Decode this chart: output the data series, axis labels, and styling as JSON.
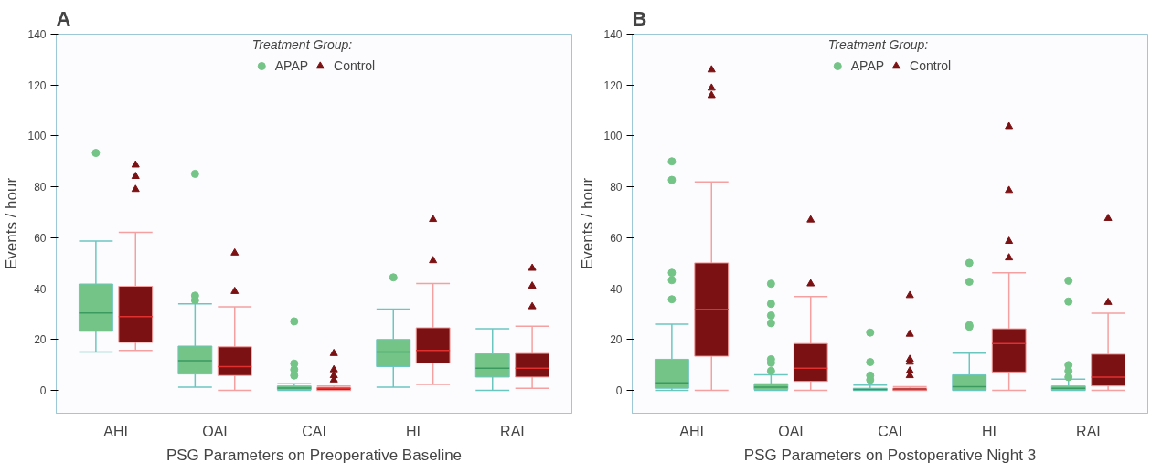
{
  "chart_data": [
    {
      "type": "box",
      "title": "A",
      "xlabel": "PSG Parameters on Preoperative Baseline",
      "ylabel": "Events / hour",
      "legend_title": "Treatment Group:",
      "legend": "top",
      "grid": false,
      "ylim": [
        -9,
        140
      ],
      "yticks": [
        0,
        20,
        40,
        60,
        80,
        100,
        120,
        140
      ],
      "categories": [
        "AHI",
        "OAI",
        "CAI",
        "HI",
        "RAI"
      ],
      "series": [
        {
          "name": "APAP",
          "color": "#74c487",
          "marker": "circle",
          "boxes": [
            {
              "low": 15.1,
              "q1": 23.2,
              "median": 30.4,
              "q3": 41.8,
              "high": 58.7,
              "outliers": [
                93.3
              ]
            },
            {
              "low": 1.2,
              "q1": 6.4,
              "median": 11.6,
              "q3": 17.4,
              "high": 34.0,
              "outliers": [
                35.4,
                37.2,
                85.1
              ]
            },
            {
              "low": 0,
              "q1": 0.2,
              "median": 0.9,
              "q3": 1.7,
              "high": 2.6,
              "outliers": [
                5.8,
                8.1,
                10.5,
                27.1
              ]
            },
            {
              "low": 1.2,
              "q1": 9.3,
              "median": 15.1,
              "q3": 20.0,
              "high": 31.9,
              "outliers": [
                44.4
              ]
            },
            {
              "low": 0,
              "q1": 5.2,
              "median": 8.7,
              "q3": 14.3,
              "high": 24.2
            }
          ]
        },
        {
          "name": "Control",
          "color": "#7b1113",
          "marker": "triangle",
          "boxes": [
            {
              "low": 15.7,
              "q1": 18.8,
              "median": 29.0,
              "q3": 40.9,
              "high": 62.1,
              "outliers": [
                79.0,
                84.1,
                88.6
              ]
            },
            {
              "low": 0,
              "q1": 5.8,
              "median": 9.3,
              "q3": 17.1,
              "high": 32.8,
              "outliers": [
                38.9,
                54.0
              ]
            },
            {
              "low": 0,
              "q1": 0,
              "median": 0.6,
              "q3": 1.2,
              "high": 1.7,
              "outliers": [
                4.1,
                5.8,
                8.1,
                14.5
              ]
            },
            {
              "low": 2.3,
              "q1": 10.7,
              "median": 15.7,
              "q3": 24.6,
              "high": 42.0,
              "outliers": [
                51.0,
                67.2
              ]
            },
            {
              "low": 0.8,
              "q1": 5.2,
              "median": 8.7,
              "q3": 14.5,
              "high": 25.2,
              "outliers": [
                32.9,
                41.0,
                48.0
              ]
            }
          ]
        }
      ]
    },
    {
      "type": "box",
      "title": "B",
      "xlabel": "PSG Parameters on Postoperative Night 3",
      "ylabel": "Events / hour",
      "legend_title": "Treatment Group:",
      "legend": "top",
      "grid": false,
      "ylim": [
        -9,
        140
      ],
      "yticks": [
        0,
        20,
        40,
        60,
        80,
        100,
        120,
        140
      ],
      "categories": [
        "AHI",
        "OAI",
        "CAI",
        "HI",
        "RAI"
      ],
      "series": [
        {
          "name": "APAP",
          "color": "#74c487",
          "marker": "circle",
          "boxes": [
            {
              "low": 0,
              "q1": 0.8,
              "median": 2.9,
              "q3": 12.2,
              "high": 26.0,
              "outliers": [
                35.8,
                43.3,
                46.2,
                82.7,
                90.0
              ]
            },
            {
              "low": 0,
              "q1": 0.3,
              "median": 1.2,
              "q3": 2.6,
              "high": 6.1,
              "outliers": [
                7.6,
                10.8,
                12.2,
                26.4,
                29.4,
                34.0,
                41.9
              ]
            },
            {
              "low": 0,
              "q1": 0,
              "median": 0.3,
              "q3": 0.8,
              "high": 2.0,
              "outliers": [
                4.1,
                5.8,
                11.1,
                22.7
              ]
            },
            {
              "low": 0,
              "q1": 0,
              "median": 1.4,
              "q3": 6.1,
              "high": 14.6,
              "outliers": [
                25.0,
                25.6,
                42.7,
                50.1
              ]
            },
            {
              "low": 0,
              "q1": 0,
              "median": 0.8,
              "q3": 1.7,
              "high": 4.4,
              "outliers": [
                5.2,
                7.6,
                9.9,
                34.9,
                43.1
              ]
            }
          ]
        },
        {
          "name": "Control",
          "color": "#7b1113",
          "marker": "triangle",
          "boxes": [
            {
              "low": 0,
              "q1": 13.4,
              "median": 31.8,
              "q3": 50.1,
              "high": 81.9,
              "outliers": [
                115.9,
                118.8,
                126.0
              ]
            },
            {
              "low": 0,
              "q1": 3.5,
              "median": 8.7,
              "q3": 18.4,
              "high": 36.9,
              "outliers": [
                41.9,
                67.0
              ]
            },
            {
              "low": 0,
              "q1": 0,
              "median": 0.3,
              "q3": 0.9,
              "high": 1.4,
              "outliers": [
                5.8,
                7.6,
                11.1,
                12.2,
                22.1,
                37.3
              ]
            },
            {
              "low": 0,
              "q1": 7.2,
              "median": 18.4,
              "q3": 24.2,
              "high": 46.2,
              "outliers": [
                52.1,
                58.6,
                78.6,
                103.7
              ]
            },
            {
              "low": 0,
              "q1": 1.7,
              "median": 5.2,
              "q3": 14.2,
              "high": 30.3,
              "outliers": [
                34.6,
                67.6
              ]
            }
          ]
        }
      ]
    }
  ]
}
